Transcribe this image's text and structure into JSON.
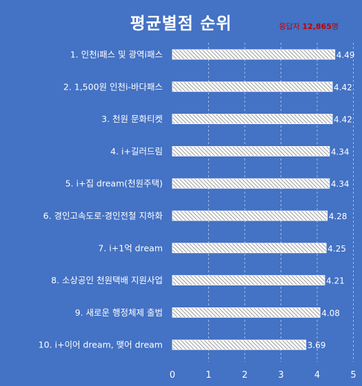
{
  "chart_data": {
    "type": "bar",
    "orientation": "horizontal",
    "title": "평균별점 순위",
    "annotation": {
      "prefix": "응답자 ",
      "count": "12,865",
      "suffix": "명"
    },
    "categories": [
      "1. 인천i패스 및 광역i패스",
      "2. 1,500원 인천i-바다패스",
      "3. 천원 문화티켓",
      "4. i+길러드림",
      "5. i+집 dream(천원주택)",
      "6. 경인고속도로·경인전철 지하화",
      "7. i+1억 dream",
      "8. 소상공인 천원택배 지원사업",
      "9. 새로운 행정체제 출범",
      "10. i+이어 dream, 맺어 dream"
    ],
    "values": [
      4.49,
      4.42,
      4.42,
      4.34,
      4.34,
      4.28,
      4.25,
      4.21,
      4.08,
      3.69
    ],
    "value_labels": [
      "4.49",
      "4.42",
      "4.42",
      "4.34",
      "4.34",
      "4.28",
      "4.25",
      "4.21",
      "4.08",
      "3.69"
    ],
    "xlim": [
      0,
      5
    ],
    "xticks": [
      "0",
      "1",
      "2",
      "3",
      "4",
      "5"
    ],
    "grid": "vertical-dashed",
    "legend": "none",
    "colors": {
      "background": "#4472c4",
      "bar_fill": "#ffffff",
      "bar_hatch": "#7f7f7f",
      "text": "#ffffff",
      "annotation": "#c00000",
      "grid": "#a9bde3"
    }
  }
}
